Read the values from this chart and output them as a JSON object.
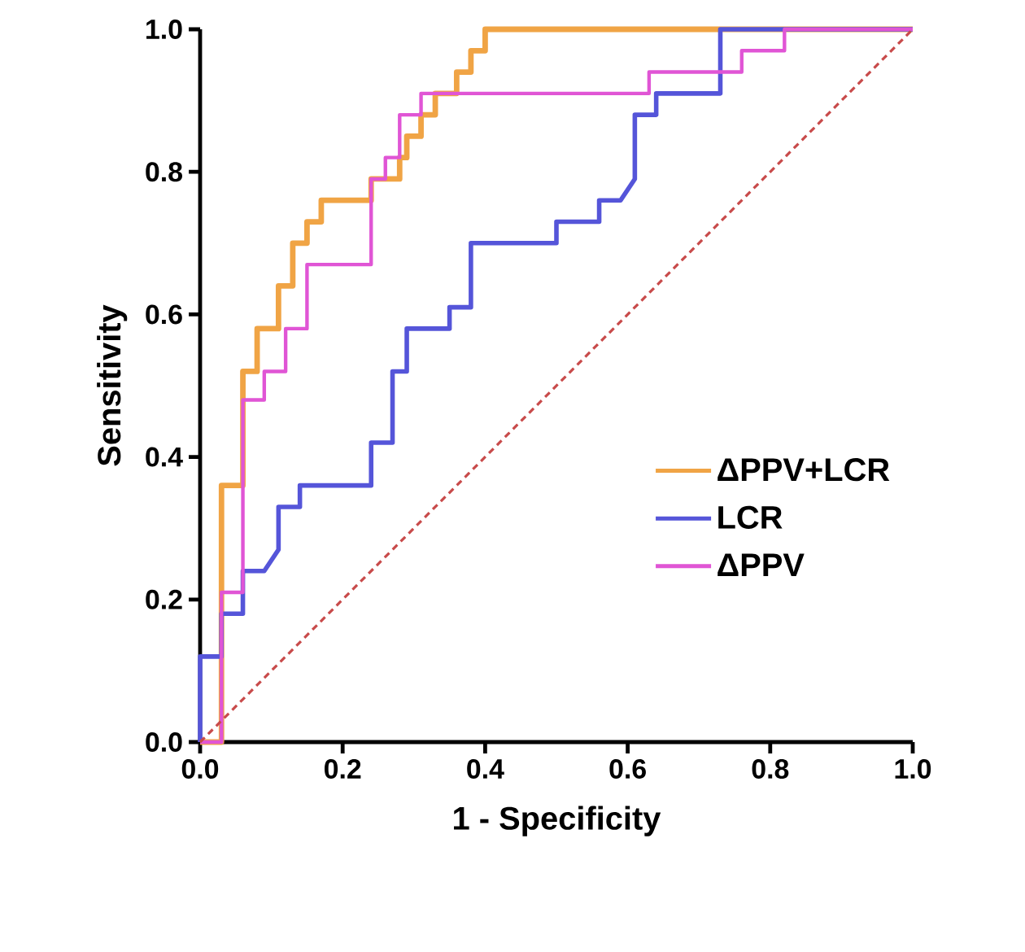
{
  "chart_data": {
    "type": "line",
    "xlabel": "1 - Specificity",
    "ylabel": "Sensitivity",
    "xlim": [
      0,
      1
    ],
    "ylim": [
      0,
      1
    ],
    "xticks": [
      {
        "value": 0,
        "label": "0.0"
      },
      {
        "value": 0.2,
        "label": "0.2"
      },
      {
        "value": 0.4,
        "label": "0.4"
      },
      {
        "value": 0.6,
        "label": "0.6"
      },
      {
        "value": 0.8,
        "label": "0.8"
      },
      {
        "value": 1,
        "label": "1.0"
      }
    ],
    "yticks": [
      {
        "value": 0,
        "label": "0.0"
      },
      {
        "value": 0.2,
        "label": "0.2"
      },
      {
        "value": 0.4,
        "label": "0.4"
      },
      {
        "value": 0.6,
        "label": "0.6"
      },
      {
        "value": 0.8,
        "label": "0.8"
      },
      {
        "value": 1,
        "label": "1.0"
      }
    ],
    "grid": false,
    "legend": "bottom right",
    "marker": "none",
    "series": [
      {
        "name": "ΔPPV+LCR",
        "color": "#f0a445",
        "x": [
          0,
          0.03,
          0.03,
          0.06,
          0.06,
          0.08,
          0.08,
          0.11,
          0.11,
          0.13,
          0.13,
          0.15,
          0.15,
          0.17,
          0.17,
          0.24,
          0.24,
          0.28,
          0.28,
          0.29,
          0.29,
          0.31,
          0.31,
          0.33,
          0.33,
          0.36,
          0.36,
          0.38,
          0.38,
          0.4,
          0.4,
          1
        ],
        "values": [
          0,
          0,
          0.36,
          0.36,
          0.52,
          0.52,
          0.58,
          0.58,
          0.64,
          0.64,
          0.7,
          0.7,
          0.73,
          0.73,
          0.76,
          0.76,
          0.79,
          0.79,
          0.82,
          0.82,
          0.85,
          0.85,
          0.88,
          0.88,
          0.91,
          0.91,
          0.94,
          0.94,
          0.97,
          0.97,
          1,
          1
        ]
      },
      {
        "name": "LCR",
        "color": "#5555d9",
        "x": [
          0,
          0,
          0.03,
          0.03,
          0.06,
          0.06,
          0.09,
          0.11,
          0.11,
          0.14,
          0.14,
          0.24,
          0.24,
          0.27,
          0.27,
          0.29,
          0.29,
          0.35,
          0.35,
          0.38,
          0.38,
          0.5,
          0.5,
          0.56,
          0.56,
          0.59,
          0.61,
          0.61,
          0.64,
          0.64,
          0.73,
          0.73,
          1
        ],
        "values": [
          0,
          0.12,
          0.12,
          0.18,
          0.18,
          0.24,
          0.24,
          0.27,
          0.33,
          0.33,
          0.36,
          0.36,
          0.42,
          0.42,
          0.52,
          0.52,
          0.58,
          0.58,
          0.61,
          0.61,
          0.7,
          0.7,
          0.73,
          0.73,
          0.76,
          0.76,
          0.79,
          0.88,
          0.88,
          0.91,
          0.91,
          1,
          1
        ]
      },
      {
        "name": "ΔPPV",
        "color": "#e055d5",
        "x": [
          0,
          0.03,
          0.03,
          0.06,
          0.06,
          0.09,
          0.09,
          0.12,
          0.12,
          0.15,
          0.15,
          0.24,
          0.24,
          0.26,
          0.26,
          0.28,
          0.28,
          0.31,
          0.31,
          0.63,
          0.63,
          0.76,
          0.76,
          0.82,
          0.82,
          1
        ],
        "values": [
          0,
          0,
          0.21,
          0.21,
          0.48,
          0.48,
          0.52,
          0.52,
          0.58,
          0.58,
          0.67,
          0.67,
          0.79,
          0.79,
          0.82,
          0.82,
          0.88,
          0.88,
          0.91,
          0.91,
          0.94,
          0.94,
          0.97,
          0.97,
          1,
          1
        ]
      },
      {
        "color": "#c84a4a",
        "line_style": "dashed",
        "x": [
          0,
          1
        ],
        "values": [
          0,
          1
        ]
      }
    ]
  }
}
